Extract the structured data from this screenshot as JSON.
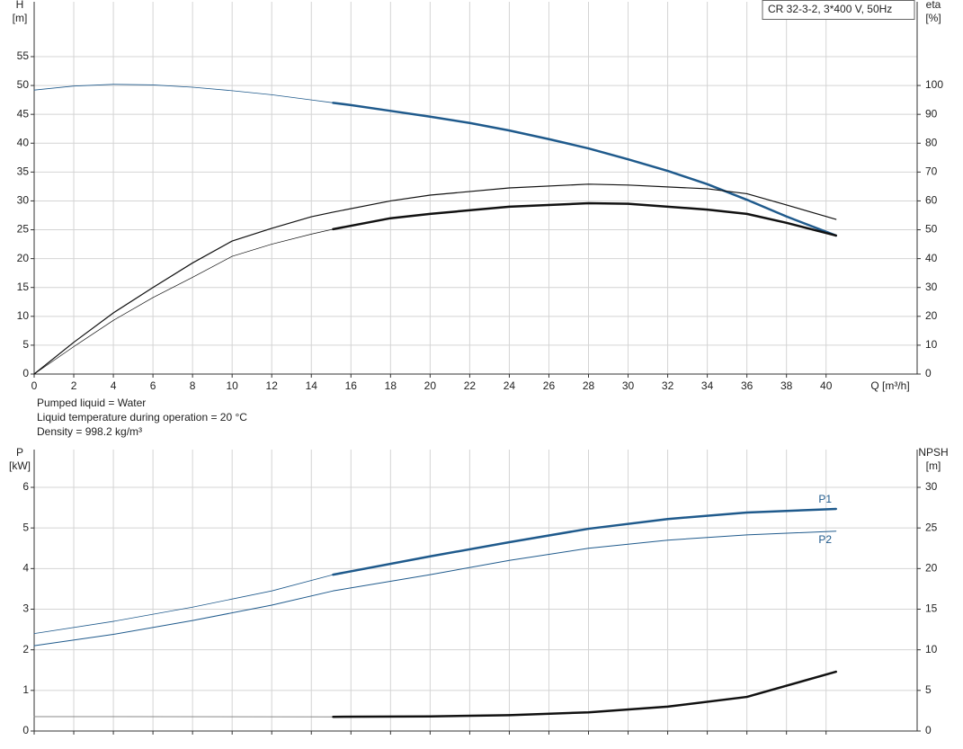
{
  "chart_data": [
    {
      "type": "line",
      "title": "CR 32-3-2, 3*400 V, 50Hz",
      "notes": [
        "Pumped liquid = Water",
        "Liquid temperature during operation = 20 °C",
        "Density = 998.2 kg/m³"
      ],
      "ylabel": "H",
      "yunit": "[m]",
      "y2label": "eta",
      "y2unit": "[%]",
      "xlabel": "Q [m³/h]",
      "xlim": [
        0,
        44.6
      ],
      "xticks": [
        0,
        2,
        4,
        6,
        8,
        10,
        12,
        14,
        16,
        18,
        20,
        22,
        24,
        26,
        28,
        30,
        32,
        34,
        36,
        38,
        40
      ],
      "ylim": [
        0,
        64.5
      ],
      "yticks": [
        0,
        5,
        10,
        15,
        20,
        25,
        30,
        35,
        40,
        45,
        50,
        55
      ],
      "y2lim": [
        0,
        129
      ],
      "y2ticks": [
        0,
        10,
        20,
        30,
        40,
        50,
        60,
        70,
        80,
        90,
        100
      ],
      "grid": true,
      "series": [
        {
          "color": "#1f5a8c",
          "width": 0.8,
          "x": [
            0,
            2,
            4,
            6,
            8,
            10,
            12,
            14,
            15.1
          ],
          "values": [
            49.2,
            49.9,
            50.2,
            50.1,
            49.7,
            49.1,
            48.4,
            47.5,
            47.0
          ]
        },
        {
          "color": "#1f5a8c",
          "width": 2.5,
          "x": [
            15.1,
            16,
            18,
            20,
            22,
            24,
            26,
            28,
            30,
            32,
            34,
            36,
            38,
            40.5
          ],
          "values": [
            47.0,
            46.6,
            45.6,
            44.6,
            43.5,
            42.2,
            40.7,
            39.1,
            37.2,
            35.2,
            32.9,
            30.2,
            27.3,
            24.0
          ]
        },
        {
          "color": "#111111",
          "width": 1.2,
          "axis": "y2",
          "x": [
            0,
            2,
            4,
            6,
            8,
            10,
            12,
            14,
            15.1,
            18,
            20,
            24,
            28,
            30,
            34,
            36,
            38,
            40.5
          ],
          "values": [
            0,
            11,
            21.2,
            30,
            38.5,
            46.1,
            50.5,
            54.5,
            56.1,
            60,
            62,
            64.5,
            65.8,
            65.5,
            64.2,
            62.5,
            58.6,
            53.6
          ]
        },
        {
          "color": "#111111",
          "width": 0.7,
          "axis": "y2",
          "x": [
            0,
            2,
            4,
            6,
            8,
            10,
            12,
            14,
            15.1
          ],
          "values": [
            0,
            9.5,
            18.6,
            26.5,
            33.5,
            40.8,
            45,
            48.5,
            50.2
          ]
        },
        {
          "color": "#111111",
          "width": 2.5,
          "axis": "y2",
          "x": [
            15.1,
            18,
            20,
            24,
            28,
            30,
            34,
            36,
            38,
            40.5
          ],
          "values": [
            50.2,
            54,
            55.5,
            58,
            59.2,
            59,
            57,
            55.5,
            52.4,
            48
          ]
        }
      ]
    },
    {
      "type": "line",
      "ylabel": "P",
      "yunit": "[kW]",
      "y2label": "NPSH",
      "y2unit": "[m]",
      "xlim": [
        0,
        44.6
      ],
      "ylim": [
        0,
        6.93
      ],
      "yticks": [
        0,
        1,
        2,
        3,
        4,
        5,
        6
      ],
      "y2lim": [
        0,
        34.65
      ],
      "y2ticks": [
        0,
        5,
        10,
        15,
        20,
        25,
        30
      ],
      "grid": true,
      "series": [
        {
          "color": "#1f5a8c",
          "width": 0.8,
          "x": [
            0,
            4,
            8,
            12,
            15.1
          ],
          "values": [
            2.4,
            2.7,
            3.05,
            3.45,
            3.85
          ]
        },
        {
          "name": "P1",
          "color": "#1f5a8c",
          "width": 2.5,
          "x": [
            15.1,
            20,
            24,
            28,
            32,
            36,
            40.5
          ],
          "values": [
            3.85,
            4.3,
            4.65,
            4.98,
            5.22,
            5.38,
            5.47
          ]
        },
        {
          "name": "P2",
          "color": "#1f5a8c",
          "width": 1,
          "x": [
            0,
            4,
            8,
            12,
            15.1,
            20,
            24,
            28,
            32,
            36,
            40.5
          ],
          "values": [
            2.1,
            2.38,
            2.72,
            3.1,
            3.45,
            3.85,
            4.2,
            4.5,
            4.7,
            4.83,
            4.92
          ]
        },
        {
          "color": "#888888",
          "width": 1,
          "axis": "y2",
          "x": [
            0,
            15.1
          ],
          "values": [
            1.77,
            1.75
          ]
        },
        {
          "color": "#111111",
          "width": 2.5,
          "axis": "y2",
          "x": [
            15.1,
            20,
            24,
            28,
            32,
            36,
            40.5
          ],
          "values": [
            1.75,
            1.8,
            1.95,
            2.3,
            3.0,
            4.2,
            7.3
          ]
        }
      ]
    }
  ]
}
